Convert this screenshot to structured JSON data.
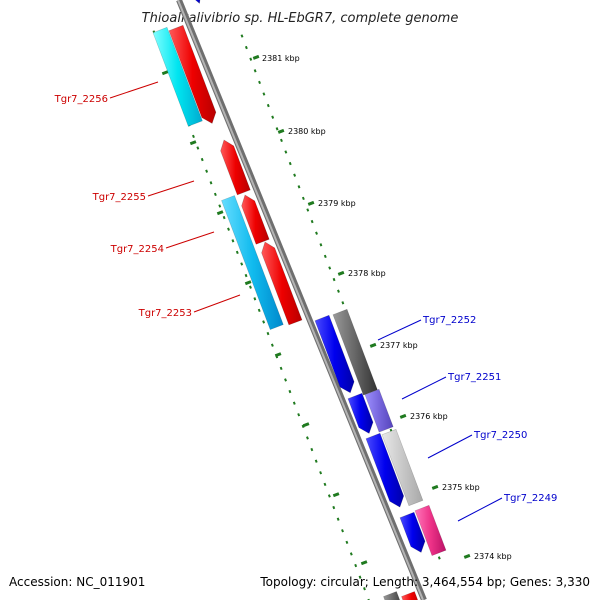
{
  "title": "Thioalkalivibrio sp. HL-EbGR7, complete genome",
  "footer": {
    "accession": "Accession: NC_011901",
    "summary": "Topology: circular; Length: 3,464,554 bp; Genes: 3,330"
  },
  "colors": {
    "backbone": "#8a8a8a",
    "tick": "#1f7a1f",
    "reverse_label": "#cc0000",
    "forward_label": "#0000cc",
    "red_cds": "#ee0000",
    "cyan_cds": "#00ddee",
    "blue_cds": "#0000ee",
    "gray_cds": "#666666",
    "lightgray_cds": "#c8c8c8",
    "purple_cds": "#7766dd",
    "pink_cds": "#ee3388"
  },
  "scale_labels": [
    "2381 kbp",
    "2380 kbp",
    "2379 kbp",
    "2378 kbp",
    "2377 kbp",
    "2376 kbp",
    "2375 kbp",
    "2374 kbp"
  ],
  "gene_labels_reverse": [
    "Tgr7_2256",
    "Tgr7_2255",
    "Tgr7_2254",
    "Tgr7_2253"
  ],
  "gene_labels_forward": [
    "Tgr7_2252",
    "Tgr7_2251",
    "Tgr7_2250",
    "Tgr7_2249"
  ]
}
